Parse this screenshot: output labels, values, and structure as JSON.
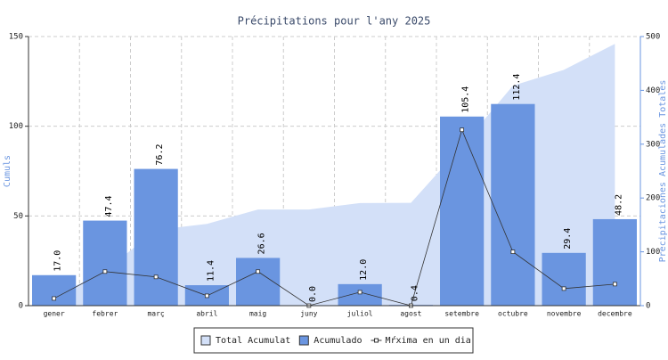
{
  "chart_data": {
    "type": "bar",
    "title": "Précipitations pour l'any 2025",
    "y_label": "Cumuls",
    "y2_label": "Precipitaciones Acumulades Totales",
    "categories": [
      "gener",
      "febrer",
      "març",
      "abril",
      "maig",
      "juny",
      "juliol",
      "agost",
      "setembre",
      "octubre",
      "novembre",
      "decembre"
    ],
    "series": [
      {
        "name": "Total Acumulat",
        "type": "area",
        "axis": "y2",
        "color": "#d3e0f8",
        "values": [
          17,
          64.4,
          140.6,
          152,
          178.6,
          178.6,
          190.6,
          191,
          296.4,
          408.8,
          438.2,
          486.4
        ]
      },
      {
        "name": "Acumulado",
        "type": "bar",
        "color": "#6a95e0",
        "values": [
          17,
          47.4,
          76.2,
          11.4,
          26.6,
          0,
          12,
          0.4,
          105.4,
          112.4,
          29.4,
          48.2
        ],
        "value_labels": [
          "17.0",
          "47.4",
          "76.2",
          "11.4",
          "26.6",
          "0.0",
          "12.0",
          "0.4",
          "105.4",
          "112.4",
          "29.4",
          "48.2"
        ]
      },
      {
        "name": "Mŕxima en un dia",
        "type": "line",
        "color": "#333333",
        "values": [
          4,
          19,
          16,
          5.5,
          19,
          0,
          7.5,
          0,
          98,
          30,
          9.5,
          12
        ]
      }
    ],
    "ylim": [
      0,
      150
    ],
    "yticks": [
      0,
      50,
      100,
      150
    ],
    "y2lim": [
      0,
      500
    ],
    "y2ticks": [
      0,
      100,
      200,
      300,
      400,
      500
    ],
    "grid": true,
    "legend": "bottom"
  }
}
